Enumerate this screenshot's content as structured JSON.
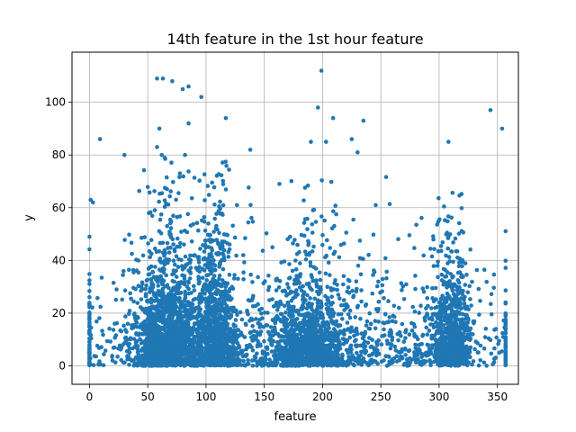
{
  "chart_data": {
    "type": "scatter",
    "title": "14th feature in the 1st hour feature",
    "xlabel": "feature",
    "ylabel": "y",
    "xlim": [
      -15,
      368
    ],
    "ylim": [
      -7,
      119
    ],
    "xticks": [
      0,
      50,
      100,
      150,
      200,
      250,
      300,
      350
    ],
    "yticks": [
      0,
      20,
      40,
      60,
      80,
      100
    ],
    "grid": true,
    "legend": "none",
    "color": "#1f77b4",
    "clusters": [
      {
        "x_center": 67,
        "x_spread": 14,
        "y_scale": 15,
        "y_max": 83,
        "count": 1500
      },
      {
        "x_center": 108,
        "x_spread": 9,
        "y_scale": 19,
        "y_max": 78,
        "count": 900
      },
      {
        "x_center": 188,
        "x_spread": 15,
        "y_scale": 12,
        "y_max": 77,
        "count": 950
      },
      {
        "x_center": 310,
        "x_spread": 8,
        "y_scale": 15,
        "y_max": 66,
        "count": 700
      },
      {
        "x_center": 180,
        "x_spread": 100,
        "y_scale": 13,
        "y_max": 72,
        "count": 1450
      }
    ],
    "outliers": [
      [
        58,
        109
      ],
      [
        63,
        109
      ],
      [
        71,
        108
      ],
      [
        85,
        106
      ],
      [
        80,
        105
      ],
      [
        96,
        102
      ],
      [
        199,
        112
      ],
      [
        196,
        98
      ],
      [
        209,
        94
      ],
      [
        235,
        93
      ],
      [
        117,
        94
      ],
      [
        85,
        92
      ],
      [
        60,
        90
      ],
      [
        354,
        90
      ],
      [
        344,
        97
      ],
      [
        9,
        86
      ],
      [
        308,
        85
      ],
      [
        203,
        85
      ],
      [
        225,
        86
      ],
      [
        190,
        85
      ],
      [
        58,
        83
      ],
      [
        62,
        80
      ],
      [
        82,
        80
      ],
      [
        30,
        80
      ],
      [
        230,
        81
      ],
      [
        138,
        82
      ],
      [
        163,
        69
      ],
      [
        1,
        63
      ],
      [
        3,
        62
      ],
      [
        0,
        49
      ]
    ]
  }
}
